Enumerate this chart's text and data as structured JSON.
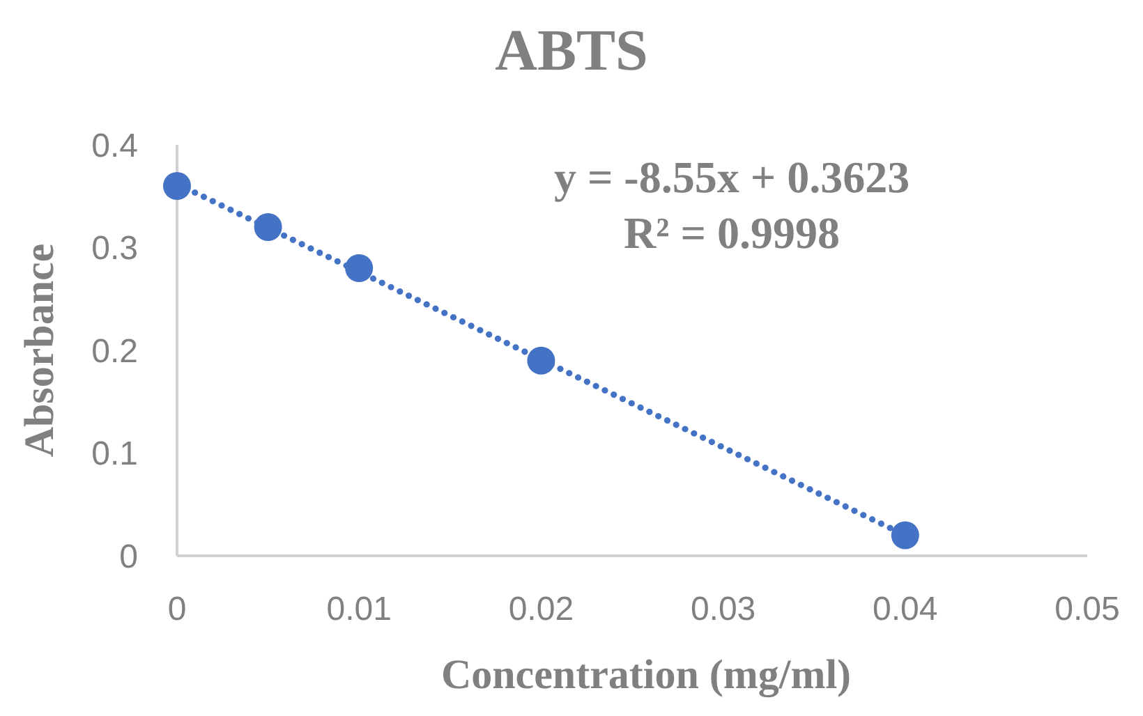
{
  "chart_data": {
    "type": "scatter",
    "title": "ABTS",
    "xlabel": "Concentration (mg/ml)",
    "ylabel": "Absorbance",
    "x": [
      0,
      0.005,
      0.01,
      0.02,
      0.04
    ],
    "series": [
      {
        "color": "#4472c4",
        "marker": "circle",
        "values": [
          0.36,
          0.32,
          0.28,
          0.19,
          0.02
        ]
      },
      {
        "type": "line",
        "color": "#4472c4",
        "line_style": "dotted",
        "marker": "none",
        "x": [
          0,
          0.04
        ],
        "values": [
          0.362,
          0.02
        ]
      }
    ],
    "annotations": [
      "y = -8.55x + 0.3623",
      "R² = 0.9998"
    ],
    "xlim": [
      0,
      0.05
    ],
    "xticks": [
      0,
      0.01,
      0.02,
      0.03,
      0.04,
      0.05
    ],
    "ylim": [
      0,
      0.4
    ],
    "yticks": [
      0,
      0.1,
      0.2,
      0.3,
      0.4
    ],
    "grid": false
  }
}
